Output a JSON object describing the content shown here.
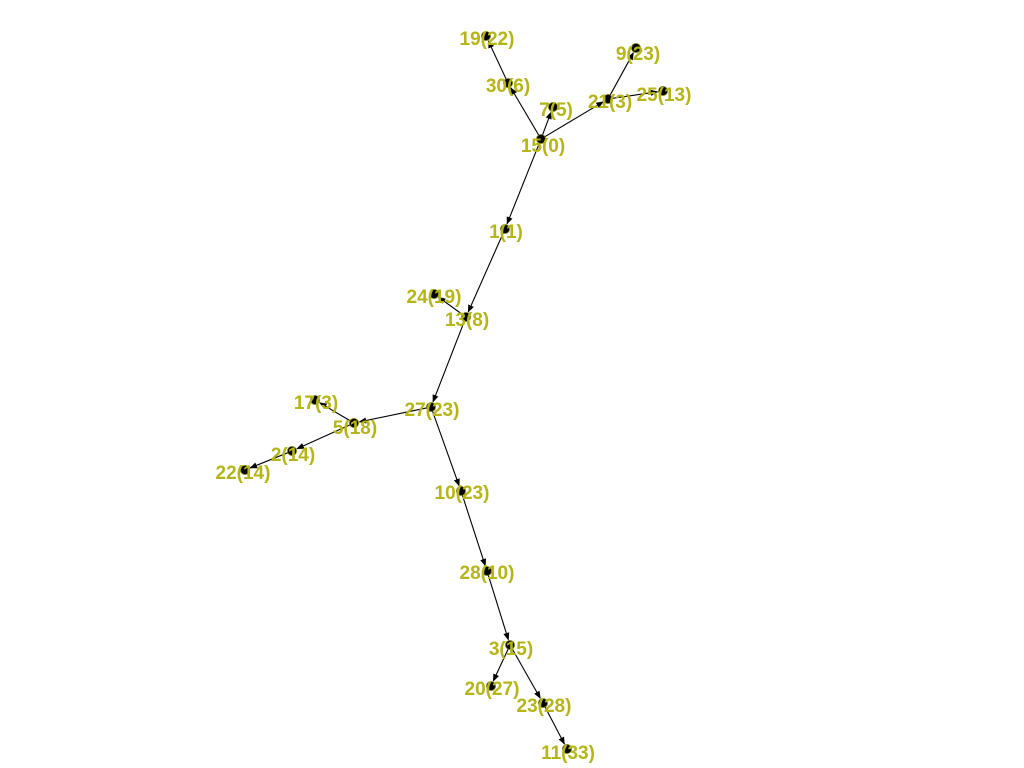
{
  "label_color": "#b5b517",
  "node_color": "#000000",
  "edge_color": "#000000",
  "nodes": [
    {
      "id": "15",
      "label": "15(0)"
    },
    {
      "id": "19",
      "label": "19(22)"
    },
    {
      "id": "30",
      "label": "30(6)"
    },
    {
      "id": "7",
      "label": "7(5)"
    },
    {
      "id": "21",
      "label": "21(3)"
    },
    {
      "id": "9",
      "label": "9(23)"
    },
    {
      "id": "25",
      "label": "25(13)"
    },
    {
      "id": "1",
      "label": "1(1)"
    },
    {
      "id": "24",
      "label": "24(19)"
    },
    {
      "id": "13",
      "label": "13(8)"
    },
    {
      "id": "27",
      "label": "27(23)"
    },
    {
      "id": "17",
      "label": "17(3)"
    },
    {
      "id": "5",
      "label": "5(18)"
    },
    {
      "id": "2",
      "label": "2(14)"
    },
    {
      "id": "22",
      "label": "22(14)"
    },
    {
      "id": "10",
      "label": "10(23)"
    },
    {
      "id": "28",
      "label": "28(10)"
    },
    {
      "id": "3",
      "label": "3(15)"
    },
    {
      "id": "20",
      "label": "20(27)"
    },
    {
      "id": "23",
      "label": "23(28)"
    },
    {
      "id": "11",
      "label": "11(33)"
    }
  ],
  "edges": [
    {
      "from": "15",
      "to": "30"
    },
    {
      "from": "30",
      "to": "19"
    },
    {
      "from": "15",
      "to": "7"
    },
    {
      "from": "15",
      "to": "21"
    },
    {
      "from": "21",
      "to": "9"
    },
    {
      "from": "21",
      "to": "25"
    },
    {
      "from": "15",
      "to": "1"
    },
    {
      "from": "1",
      "to": "13"
    },
    {
      "from": "13",
      "to": "24"
    },
    {
      "from": "13",
      "to": "27"
    },
    {
      "from": "27",
      "to": "5"
    },
    {
      "from": "5",
      "to": "17"
    },
    {
      "from": "5",
      "to": "2"
    },
    {
      "from": "2",
      "to": "22"
    },
    {
      "from": "27",
      "to": "10"
    },
    {
      "from": "10",
      "to": "28"
    },
    {
      "from": "28",
      "to": "3"
    },
    {
      "from": "3",
      "to": "20"
    },
    {
      "from": "3",
      "to": "23"
    },
    {
      "from": "23",
      "to": "11"
    }
  ]
}
